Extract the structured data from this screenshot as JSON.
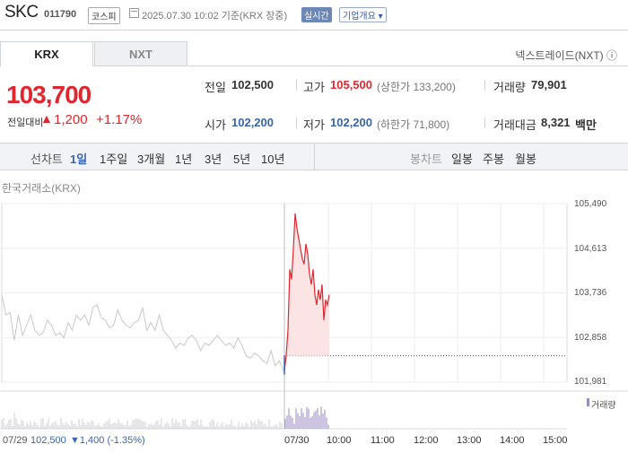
{
  "header": {
    "name": "SKC",
    "code": "011790",
    "market": "코스피",
    "as_of": "2025.07.30 10:02 기준(KRX 장중)",
    "realtime": "실시간",
    "company": "기업개요 ▾"
  },
  "tabs": [
    "KRX",
    "NXT"
  ],
  "nextrade_link": "넥스트레이드(NXT) ⓘ",
  "quote": {
    "price": "103,700",
    "change_label": "전일대비",
    "change_arrow": "▲",
    "change": "1,200",
    "change_pct": "+1.17%"
  },
  "stats": {
    "prev_label": "전일",
    "prev": "102,500",
    "high_label": "고가",
    "high": "105,500",
    "upper_limit": "(상한가 133,200)",
    "volume_label": "거래량",
    "volume": "79,901",
    "open_label": "시가",
    "open": "102,200",
    "low_label": "저가",
    "low": "102,200",
    "lower_limit": "(하한가 71,800)",
    "value_label": "거래대금",
    "value": "8,321",
    "value_unit": "백만"
  },
  "period_tabs": {
    "line_label": "선차트",
    "line": [
      "1일",
      "1주일",
      "3개월",
      "1년",
      "3년",
      "5년",
      "10년"
    ],
    "candle_label": "봉차트",
    "candle": [
      "일봉",
      "주봉",
      "월봉"
    ],
    "active": "1일"
  },
  "chart_data": {
    "type": "line",
    "exchange_label": "한국거래소(KRX)",
    "y_ticks": [
      "105,490",
      "104,613",
      "103,736",
      "102,858",
      "101,981"
    ],
    "ylim": [
      101981,
      105490
    ],
    "x_ticks": [
      "10:00",
      "11:00",
      "12:00",
      "13:00",
      "14:00",
      "15:00"
    ],
    "volume_label": "거래량",
    "previous_close": 102500,
    "previous_day": {
      "date": "07/29",
      "close": "102,500",
      "change": "▼1,400",
      "change_pct": "(-1.35%)"
    },
    "today_label": "07/30",
    "today_series": [
      102200,
      102500,
      103000,
      104200,
      104000,
      104600,
      105300,
      105000,
      104800,
      104600,
      104400,
      104300,
      104700,
      104500,
      104100,
      103900,
      104200,
      103700,
      103500,
      103800,
      103600,
      103900,
      103200,
      103600,
      103500,
      103700
    ],
    "previous_day_series": [
      103700,
      103300,
      103350,
      102800,
      103300,
      102900,
      103100,
      103300,
      103000,
      102900,
      102950,
      103200,
      103100,
      102900,
      102950,
      102850,
      103150,
      103000,
      103300,
      103200,
      103300,
      103100,
      103450,
      103500,
      103250,
      103200,
      103050,
      103100,
      103400,
      103200,
      103100,
      103050,
      103150,
      103200,
      103450,
      103000,
      103150,
      103000,
      103300,
      103000,
      102900,
      102800,
      102650,
      102750,
      102700,
      102850,
      102900,
      102800,
      102600,
      102750,
      102700,
      102800,
      102900,
      102800,
      102700,
      102750,
      102650,
      102850,
      102700,
      102500,
      102450,
      102550,
      102500,
      102400,
      102350,
      102600,
      102300,
      102400,
      102200
    ]
  },
  "colors": {
    "up": "#e0262f",
    "down": "#3865ad",
    "prev_line": "#c8c8c8",
    "fill": "#fde4e4",
    "volume": "#9b8ac6"
  }
}
